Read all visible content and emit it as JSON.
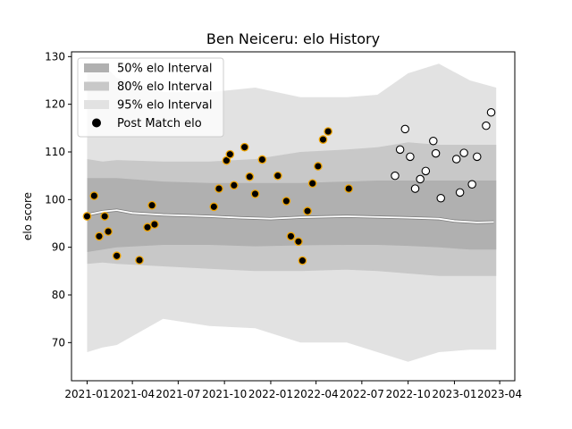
{
  "chart_data": {
    "type": "line",
    "title": "Ben Neiceru: elo History",
    "xlabel": "",
    "ylabel": "elo score",
    "xlim": [
      "2020-12-01",
      "2023-05-01"
    ],
    "ylim": [
      62,
      131
    ],
    "yticks": [
      70,
      80,
      90,
      100,
      110,
      120,
      130
    ],
    "xticks": [
      {
        "date": "2021-01-01",
        "label": "2021-01"
      },
      {
        "date": "2021-04-01",
        "label": "2021-04"
      },
      {
        "date": "2021-07-01",
        "label": "2021-07"
      },
      {
        "date": "2021-10-01",
        "label": "2021-10"
      },
      {
        "date": "2022-01-01",
        "label": "2022-01"
      },
      {
        "date": "2022-04-01",
        "label": "2022-04"
      },
      {
        "date": "2022-07-01",
        "label": "2022-07"
      },
      {
        "date": "2022-10-01",
        "label": "2022-10"
      },
      {
        "date": "2023-01-01",
        "label": "2023-01"
      },
      {
        "date": "2023-04-01",
        "label": "2023-04"
      }
    ],
    "grid": false,
    "legend_position": "top-left",
    "legend": [
      {
        "label": "50% elo Interval",
        "kind": "band",
        "color": "#b0b0b0"
      },
      {
        "label": "80% elo Interval",
        "kind": "band",
        "color": "#c8c8c8"
      },
      {
        "label": "95% elo Interval",
        "kind": "band",
        "color": "#e2e2e2"
      },
      {
        "label": "Post Match elo",
        "kind": "marker",
        "color": "#000000"
      }
    ],
    "colors": {
      "band50": "#b0b0b0",
      "band80": "#c8c8c8",
      "band95": "#e2e2e2",
      "mean_line": "#ffffff",
      "mean_outline": "#808080",
      "played_fill": "#000000",
      "played_edge": "#f0a500",
      "future_fill": "#ffffff",
      "future_edge": "#000000"
    },
    "mean_series": {
      "x": [
        "2021-01-01",
        "2021-02-01",
        "2021-03-01",
        "2021-04-01",
        "2021-06-01",
        "2021-09-01",
        "2021-11-01",
        "2022-01-01",
        "2022-03-01",
        "2022-06-01",
        "2022-10-01",
        "2022-12-01",
        "2023-01-01",
        "2023-02-15",
        "2023-03-20"
      ],
      "y": [
        96.8,
        97.5,
        97.8,
        97.2,
        96.8,
        96.5,
        96.2,
        96.0,
        96.3,
        96.5,
        96.2,
        96.0,
        95.5,
        95.2,
        95.3
      ]
    },
    "bands": {
      "x": [
        "2021-01-01",
        "2021-02-01",
        "2021-03-01",
        "2021-06-01",
        "2021-09-01",
        "2021-12-01",
        "2022-03-01",
        "2022-06-01",
        "2022-08-01",
        "2022-10-01",
        "2022-12-01",
        "2023-02-01",
        "2023-03-25"
      ],
      "p50_low": [
        89.0,
        89.5,
        90.0,
        90.5,
        90.5,
        90.2,
        90.4,
        90.5,
        90.5,
        90.3,
        90.0,
        89.5,
        89.5
      ],
      "p50_high": [
        104.5,
        104.5,
        104.5,
        103.8,
        103.5,
        103.5,
        103.5,
        103.8,
        104.0,
        104.0,
        104.0,
        104.0,
        104.0
      ],
      "p80_low": [
        86.5,
        86.8,
        86.5,
        86.0,
        85.5,
        85.0,
        85.0,
        85.3,
        85.0,
        84.5,
        84.0,
        84.0,
        84.0
      ],
      "p80_high": [
        108.5,
        108.0,
        108.3,
        108.0,
        108.0,
        108.5,
        110.0,
        110.5,
        111.0,
        112.0,
        111.5,
        111.5,
        111.5
      ],
      "p95_low": [
        68.0,
        69.0,
        69.5,
        75.0,
        73.5,
        73.0,
        70.0,
        70.0,
        68.0,
        66.0,
        68.0,
        68.5,
        68.5
      ],
      "p95_high": [
        128.0,
        128.5,
        125.5,
        122.5,
        122.5,
        123.5,
        121.5,
        121.5,
        122.0,
        126.5,
        128.5,
        125.0,
        123.5
      ]
    },
    "post_match": {
      "x": [
        "2021-01-01",
        "2021-01-15",
        "2021-01-25",
        "2021-02-05",
        "2021-02-12",
        "2021-03-01",
        "2021-04-15",
        "2021-05-01",
        "2021-05-10",
        "2021-05-15",
        "2021-09-10",
        "2021-09-20",
        "2021-10-05",
        "2021-10-12",
        "2021-10-20",
        "2021-11-10",
        "2021-11-20",
        "2021-12-01",
        "2021-12-15",
        "2022-01-15",
        "2022-02-01",
        "2022-02-10",
        "2022-02-25",
        "2022-03-05",
        "2022-03-15",
        "2022-03-25",
        "2022-04-05",
        "2022-04-15",
        "2022-04-25",
        "2022-06-05"
      ],
      "y": [
        96.5,
        100.8,
        92.3,
        96.5,
        93.3,
        88.2,
        87.3,
        94.2,
        98.8,
        94.8,
        98.5,
        102.3,
        108.2,
        109.5,
        103.0,
        111.0,
        104.8,
        101.2,
        108.4,
        105.0,
        99.7,
        92.3,
        91.2,
        87.2,
        97.6,
        103.4,
        107.0,
        112.6,
        114.3,
        102.3
      ]
    },
    "future_points": {
      "x": [
        "2022-09-05",
        "2022-09-15",
        "2022-09-25",
        "2022-10-05",
        "2022-10-15",
        "2022-10-25",
        "2022-11-05",
        "2022-11-20",
        "2022-11-25",
        "2022-12-05",
        "2023-01-05",
        "2023-01-12",
        "2023-01-20",
        "2023-02-05",
        "2023-02-15",
        "2023-03-05",
        "2023-03-15"
      ],
      "y": [
        105.0,
        110.5,
        114.8,
        109.0,
        102.3,
        104.3,
        106.0,
        112.3,
        109.7,
        100.3,
        108.5,
        101.5,
        109.8,
        103.2,
        109.0,
        115.5,
        118.3
      ]
    }
  }
}
